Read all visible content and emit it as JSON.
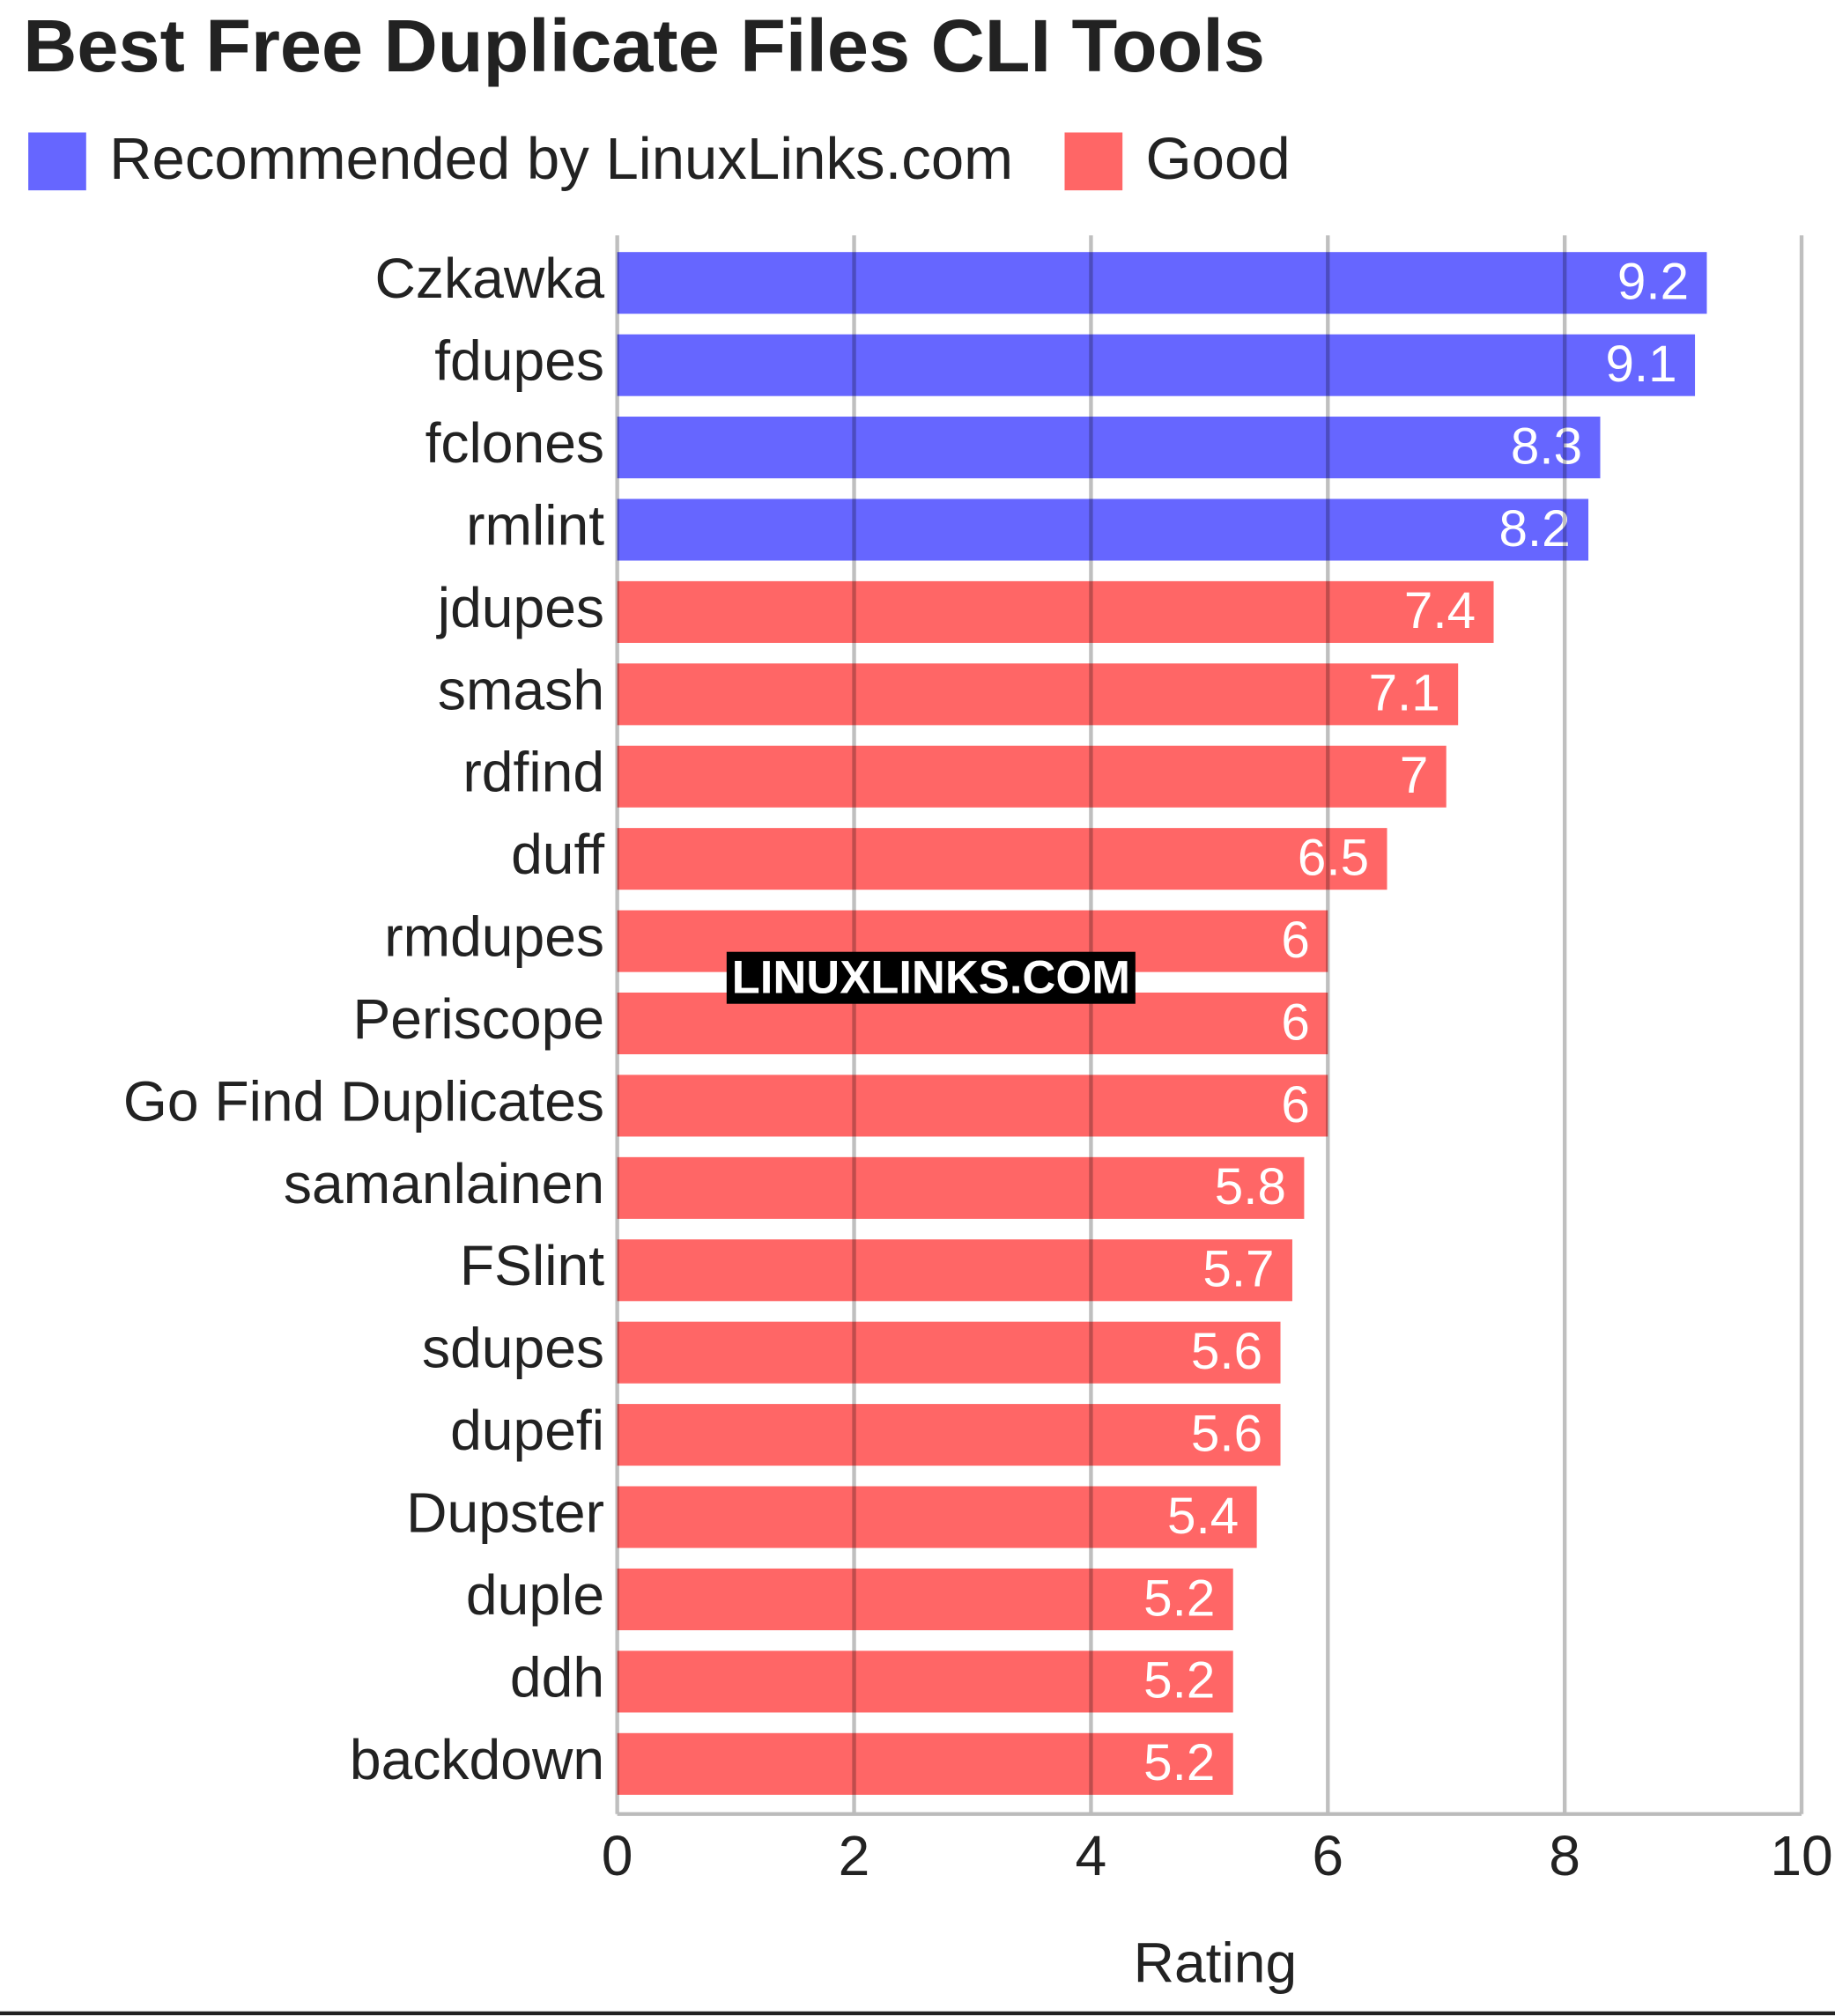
{
  "chart_data": {
    "type": "barh",
    "title": "Best Free Duplicate Files CLI Tools",
    "x_label": "Rating",
    "watermark": "LINUXLINKS.COM",
    "categories": [
      "Czkawka",
      "fdupes",
      "fclones",
      "rmlint",
      "jdupes",
      "smash",
      "rdfind",
      "duff",
      "rmdupes",
      "Periscope",
      "Go Find Duplicates",
      "samanlainen",
      "FSlint",
      "sdupes",
      "dupefi",
      "Dupster",
      "duple",
      "ddh",
      "backdown"
    ],
    "series": [
      {
        "name": "Recommended by LinuxLinks.com",
        "color": "#6666ff",
        "values": [
          9.2,
          9.1,
          8.3,
          8.2,
          null,
          null,
          null,
          null,
          null,
          null,
          null,
          null,
          null,
          null,
          null,
          null,
          null,
          null,
          null
        ]
      },
      {
        "name": "Good",
        "color": "#ff6666",
        "values": [
          null,
          null,
          null,
          null,
          7.4,
          7.1,
          7,
          6.5,
          6,
          6,
          6,
          5.8,
          5.7,
          5.6,
          5.6,
          5.4,
          5.2,
          5.2,
          5.2
        ]
      }
    ],
    "xlim": [
      0,
      10
    ],
    "xticks": [
      0,
      2,
      4,
      6,
      8,
      10
    ],
    "grid": true,
    "legend": "top-left"
  }
}
